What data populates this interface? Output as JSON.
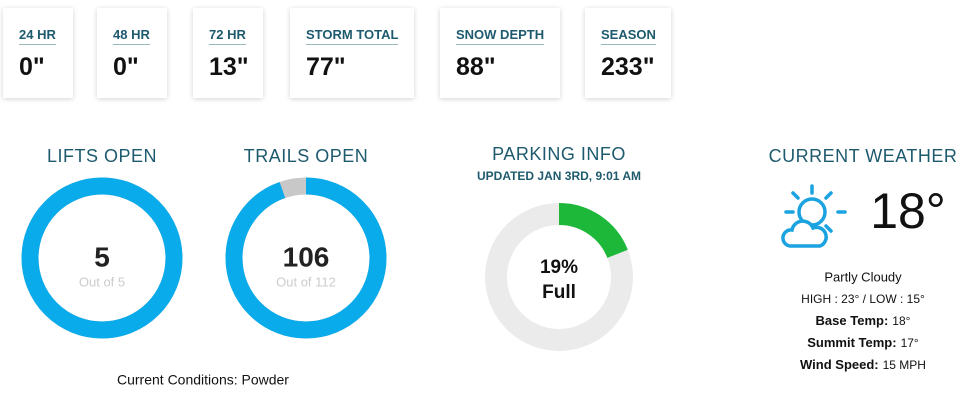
{
  "snow_report": [
    {
      "label": "24 HR",
      "value": "0\""
    },
    {
      "label": "48 HR",
      "value": "0\""
    },
    {
      "label": "72 HR",
      "value": "13\""
    },
    {
      "label": "STORM TOTAL",
      "value": "77\""
    },
    {
      "label": "SNOW DEPTH",
      "value": "88\""
    },
    {
      "label": "SEASON",
      "value": "233\""
    }
  ],
  "lifts": {
    "title": "LIFTS OPEN",
    "open": 5,
    "total": 5,
    "total_label": "Out of 5"
  },
  "trails": {
    "title": "TRAILS OPEN",
    "open": 106,
    "total": 112,
    "total_label": "Out of 112"
  },
  "conditions": "Current Conditions: Powder",
  "parking": {
    "title": "PARKING INFO",
    "updated": "UPDATED JAN 3RD, 9:01 AM",
    "value": 19,
    "value_label": "19%",
    "status": "Full"
  },
  "weather": {
    "title": "CURRENT WEATHER",
    "temperature": "18°",
    "description": "Partly Cloudy",
    "high_low": "HIGH : 23° / LOW : 15°",
    "details": [
      {
        "label": "Base Temp:",
        "value": "18°"
      },
      {
        "label": "Summit Temp:",
        "value": "17°"
      },
      {
        "label": "Wind Speed:",
        "value": "15 MPH"
      }
    ]
  }
}
